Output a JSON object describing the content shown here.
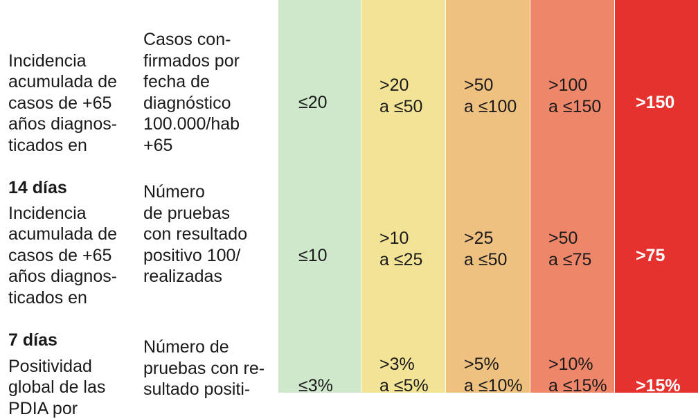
{
  "colors": {
    "level_1": "#cfe8cc",
    "level_2": "#f3e396",
    "level_3": "#efc181",
    "level_4": "#ee866a",
    "level_5": "#e5322f",
    "text": "#1a1a1a",
    "text_on_red": "#ffffff"
  },
  "rows": [
    {
      "metric_text": "Incidencia\nacumulada de\ncasos de +65\naños diagnos-\nticados en",
      "metric_bold": "14 días",
      "description": "Casos con-\nfirmados por\nfecha de\ndiagnóstico\n100.000/hab\n+65",
      "levels": [
        "≤20",
        ">20\na ≤50",
        ">50\na ≤100",
        ">100\na ≤150",
        ">150"
      ]
    },
    {
      "metric_text": "Incidencia\nacumulada de\ncasos de +65\naños diagnos-\nticados en",
      "metric_bold": "7 días",
      "description": "Número\nde pruebas\ncon resultado\npositivo 100/\nrealizadas",
      "levels": [
        "≤10",
        ">10\na ≤25",
        ">25\na ≤50",
        ">50\na ≤75",
        ">75"
      ]
    },
    {
      "metric_text": "Positividad\nglobal de las\nPDIA por",
      "metric_bold": "",
      "description": "Número de\npruebas con re-\nsultado positi-",
      "levels": [
        "≤3%",
        ">3%\na ≤5%",
        ">5%\na ≤10%",
        ">10%\na ≤15%",
        ">15%"
      ]
    }
  ]
}
